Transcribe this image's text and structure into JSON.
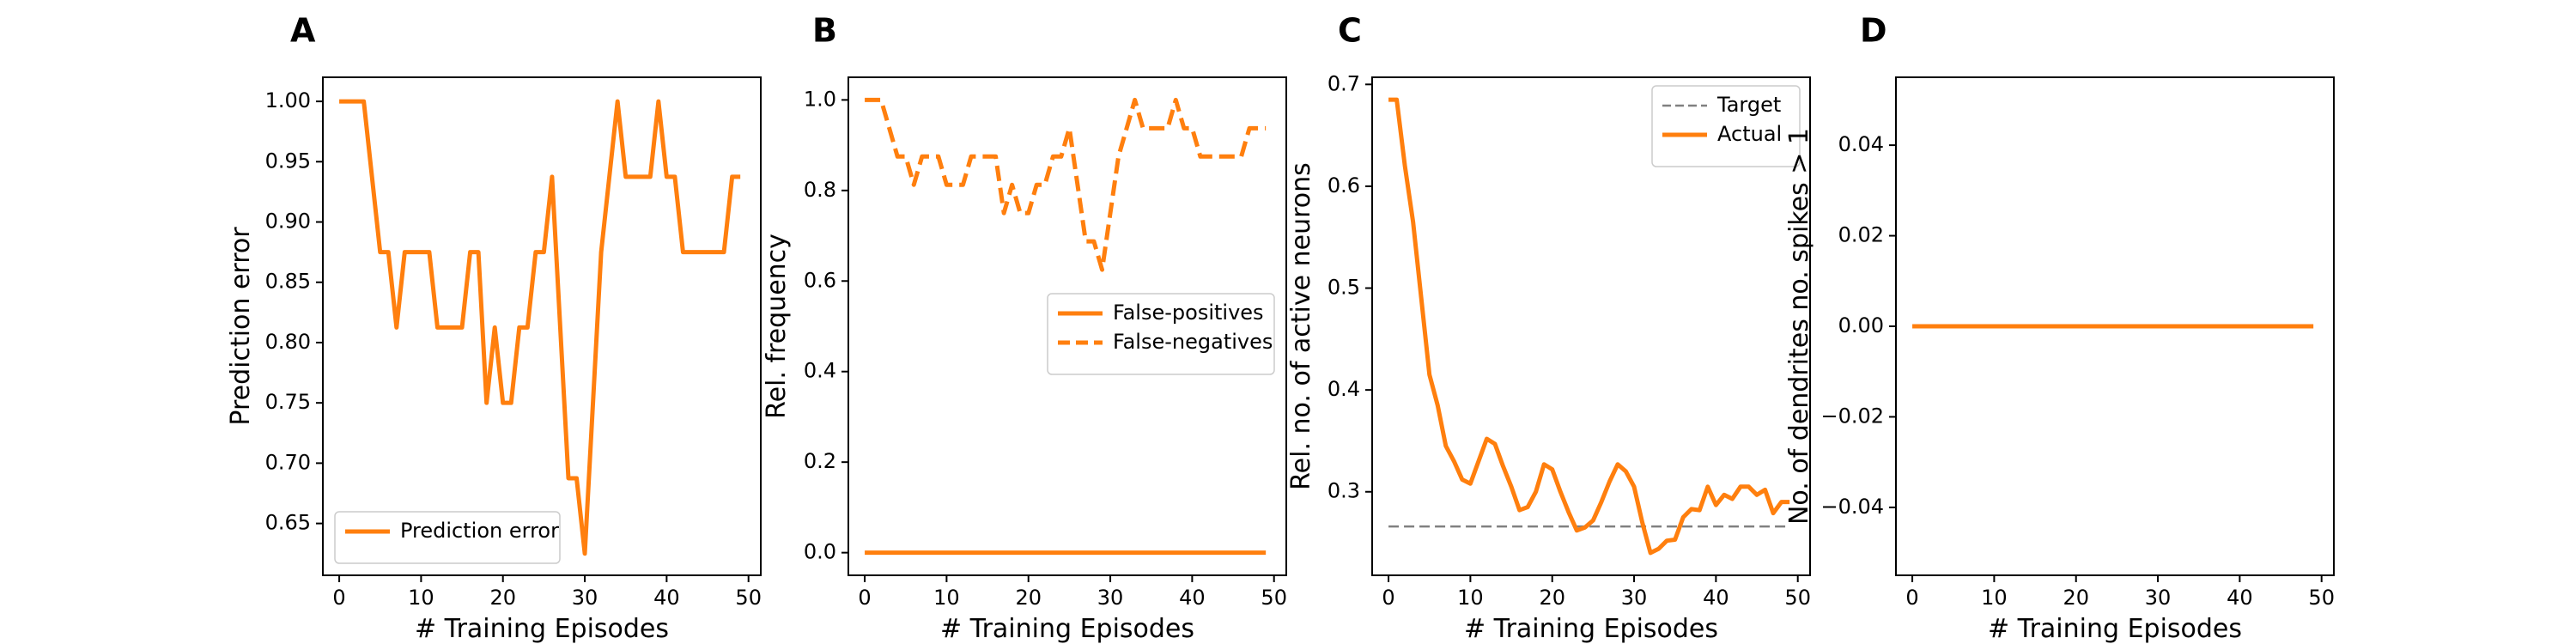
{
  "colors": {
    "series": "#ff7f0e",
    "target": "#808080",
    "axis": "#000000",
    "legend_border": "#cccccc"
  },
  "chart_data": [
    {
      "panel": "A",
      "type": "line",
      "xlabel": "# Training Episodes",
      "ylabel": "Prediction error",
      "xlim": [
        -2,
        51.5
      ],
      "ylim": [
        0.607,
        1.02
      ],
      "xticks": [
        0,
        10,
        20,
        30,
        40,
        50
      ],
      "yticks": [
        0.65,
        0.7,
        0.75,
        0.8,
        0.85,
        0.9,
        0.95,
        1.0
      ],
      "ytick_labels": [
        "0.65",
        "0.70",
        "0.75",
        "0.80",
        "0.85",
        "0.90",
        "0.95",
        "1.00"
      ],
      "legend": {
        "position": "lower-left",
        "entries": [
          "Prediction error"
        ]
      },
      "series": [
        {
          "name": "Prediction error",
          "style": "solid",
          "x": [
            0,
            1,
            2,
            3,
            4,
            5,
            6,
            7,
            8,
            9,
            10,
            11,
            12,
            13,
            14,
            15,
            16,
            17,
            18,
            19,
            20,
            21,
            22,
            23,
            24,
            25,
            26,
            27,
            28,
            29,
            30,
            31,
            32,
            33,
            34,
            35,
            36,
            37,
            38,
            39,
            40,
            41,
            42,
            43,
            44,
            45,
            46,
            47,
            48,
            49
          ],
          "values": [
            1.0,
            1.0,
            1.0,
            1.0,
            0.9375,
            0.875,
            0.875,
            0.8125,
            0.875,
            0.875,
            0.875,
            0.875,
            0.8125,
            0.8125,
            0.8125,
            0.8125,
            0.875,
            0.875,
            0.75,
            0.8125,
            0.75,
            0.75,
            0.8125,
            0.8125,
            0.875,
            0.875,
            0.9375,
            0.8125,
            0.6875,
            0.6875,
            0.625,
            0.75,
            0.875,
            0.9375,
            1.0,
            0.9375,
            0.9375,
            0.9375,
            0.9375,
            1.0,
            0.9375,
            0.9375,
            0.875,
            0.875,
            0.875,
            0.875,
            0.875,
            0.875,
            0.9375,
            0.9375
          ]
        }
      ]
    },
    {
      "panel": "B",
      "type": "line",
      "xlabel": "# Training Episodes",
      "ylabel": "Rel. frequency",
      "xlim": [
        -2,
        51.5
      ],
      "ylim": [
        -0.05,
        1.05
      ],
      "xticks": [
        0,
        10,
        20,
        30,
        40,
        50
      ],
      "yticks": [
        0.0,
        0.2,
        0.4,
        0.6,
        0.8,
        1.0
      ],
      "ytick_labels": [
        "0.0",
        "0.2",
        "0.4",
        "0.6",
        "0.8",
        "1.0"
      ],
      "legend": {
        "position": "center-right",
        "entries": [
          "False-positives",
          "False-negatives"
        ]
      },
      "series": [
        {
          "name": "False-positives",
          "style": "solid",
          "x": [
            0,
            49
          ],
          "values": [
            0.0,
            0.0
          ]
        },
        {
          "name": "False-negatives",
          "style": "dashed",
          "x": [
            0,
            1,
            2,
            3,
            4,
            5,
            6,
            7,
            8,
            9,
            10,
            11,
            12,
            13,
            14,
            15,
            16,
            17,
            18,
            19,
            20,
            21,
            22,
            23,
            24,
            25,
            26,
            27,
            28,
            29,
            30,
            31,
            32,
            33,
            34,
            35,
            36,
            37,
            38,
            39,
            40,
            41,
            42,
            43,
            44,
            45,
            46,
            47,
            48,
            49
          ],
          "values": [
            1.0,
            1.0,
            1.0,
            0.9375,
            0.875,
            0.875,
            0.8125,
            0.875,
            0.875,
            0.875,
            0.8125,
            0.8125,
            0.8125,
            0.875,
            0.875,
            0.875,
            0.875,
            0.75,
            0.8125,
            0.75,
            0.75,
            0.8125,
            0.8125,
            0.875,
            0.875,
            0.9375,
            0.8125,
            0.6875,
            0.6875,
            0.625,
            0.75,
            0.875,
            0.9375,
            1.0,
            0.9375,
            0.9375,
            0.9375,
            0.9375,
            1.0,
            0.9375,
            0.9375,
            0.875,
            0.875,
            0.875,
            0.875,
            0.875,
            0.875,
            0.9375,
            0.9375,
            0.9375
          ]
        }
      ]
    },
    {
      "panel": "C",
      "type": "line",
      "xlabel": "# Training Episodes",
      "ylabel": "Rel. no. of active neurons",
      "xlim": [
        -2,
        51.5
      ],
      "ylim": [
        0.218,
        0.707
      ],
      "xticks": [
        0,
        10,
        20,
        30,
        40,
        50
      ],
      "yticks": [
        0.3,
        0.4,
        0.5,
        0.6,
        0.7
      ],
      "ytick_labels": [
        "0.3",
        "0.4",
        "0.5",
        "0.6",
        "0.7"
      ],
      "legend": {
        "position": "top-right",
        "entries": [
          "Target",
          "Actual"
        ]
      },
      "series": [
        {
          "name": "Target",
          "style": "dashed",
          "x": [
            0,
            49
          ],
          "values": [
            0.266,
            0.266
          ]
        },
        {
          "name": "Actual",
          "style": "solid",
          "x": [
            0,
            1,
            2,
            3,
            4,
            5,
            6,
            7,
            8,
            9,
            10,
            11,
            12,
            13,
            14,
            15,
            16,
            17,
            18,
            19,
            20,
            21,
            22,
            23,
            24,
            25,
            26,
            27,
            28,
            29,
            30,
            31,
            32,
            33,
            34,
            35,
            36,
            37,
            38,
            39,
            40,
            41,
            42,
            43,
            44,
            45,
            46,
            47,
            48,
            49
          ],
          "values": [
            0.685,
            0.685,
            0.62,
            0.565,
            0.49,
            0.415,
            0.385,
            0.345,
            0.33,
            0.312,
            0.308,
            0.33,
            0.352,
            0.347,
            0.325,
            0.305,
            0.282,
            0.285,
            0.3,
            0.327,
            0.322,
            0.3,
            0.28,
            0.262,
            0.265,
            0.272,
            0.29,
            0.31,
            0.327,
            0.32,
            0.305,
            0.27,
            0.24,
            0.244,
            0.252,
            0.253,
            0.275,
            0.283,
            0.282,
            0.305,
            0.287,
            0.297,
            0.293,
            0.305,
            0.305,
            0.297,
            0.302,
            0.279,
            0.29,
            0.29
          ]
        }
      ]
    },
    {
      "panel": "D",
      "type": "line",
      "xlabel": "# Training Episodes",
      "ylabel": "No. of dendrites no. spikes > 1",
      "xlim": [
        -2,
        51.5
      ],
      "ylim": [
        -0.055,
        0.055
      ],
      "xticks": [
        0,
        10,
        20,
        30,
        40,
        50
      ],
      "yticks": [
        -0.04,
        -0.02,
        0.0,
        0.02,
        0.04
      ],
      "ytick_labels": [
        "−0.04",
        "−0.02",
        "0.00",
        "0.02",
        "0.04"
      ],
      "legend": null,
      "series": [
        {
          "name": "",
          "style": "solid",
          "x": [
            0,
            49
          ],
          "values": [
            0.0,
            0.0
          ]
        }
      ]
    }
  ]
}
